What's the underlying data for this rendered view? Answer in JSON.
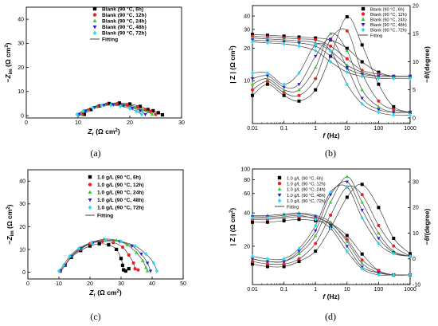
{
  "figure": {
    "captions": [
      "(a)",
      "(b)",
      "(c)",
      "(d)"
    ]
  },
  "colors": {
    "black": "#000000",
    "red": "#e8202a",
    "green": "#35c935",
    "blue": "#2222dd",
    "cyan": "#22ddee",
    "fit": "#444444"
  },
  "chart_data": [
    {
      "type": "scatter",
      "panel": "a",
      "xlabel": "Zr (Ω cm²)",
      "ylabel": "−Zim (Ω cm²)",
      "xlim": [
        0,
        30
      ],
      "ylim": [
        -1,
        45
      ],
      "xticks": [
        0,
        10,
        20,
        30
      ],
      "yticks": [
        0,
        10,
        20,
        30,
        40
      ],
      "legend": "top-left",
      "series": [
        {
          "name": "Blank (90 °C, 6h)",
          "marker": "square",
          "color": "black",
          "x": [
            11.2,
            12.5,
            14.2,
            16.0,
            18.0,
            20.0,
            22.0,
            23.5,
            24.5,
            25.5,
            26.3
          ],
          "y": [
            0.5,
            2.5,
            4.0,
            5.0,
            5.2,
            4.8,
            3.8,
            2.5,
            2.0,
            1.2,
            0.3
          ]
        },
        {
          "name": "Blank (90 °C, 12h)",
          "marker": "circle",
          "color": "red",
          "x": [
            10.8,
            12.0,
            13.8,
            15.5,
            17.5,
            19.5,
            21.5,
            23.0,
            24.0,
            25.0
          ],
          "y": [
            0.5,
            2.3,
            3.8,
            4.7,
            4.9,
            4.5,
            3.5,
            2.4,
            1.8,
            0.5
          ]
        },
        {
          "name": "Blank (90 °C, 24h)",
          "marker": "triangle-up",
          "color": "green",
          "x": [
            10.5,
            11.8,
            13.5,
            15.2,
            17.0,
            19.0,
            21.0,
            22.5,
            23.5,
            24.3
          ],
          "y": [
            0.5,
            2.2,
            3.6,
            4.5,
            4.7,
            4.3,
            3.3,
            2.3,
            1.6,
            0.5
          ]
        },
        {
          "name": "Blank (90 °C, 48h)",
          "marker": "triangle-down",
          "color": "blue",
          "x": [
            10.2,
            11.5,
            13.2,
            15.0,
            16.8,
            18.8,
            20.5,
            22.0,
            23.0
          ],
          "y": [
            0.5,
            2.0,
            3.4,
            4.3,
            4.5,
            4.1,
            3.1,
            2.0,
            0.5
          ]
        },
        {
          "name": "Blank (90 °C, 72h)",
          "marker": "diamond",
          "color": "cyan",
          "x": [
            9.8,
            11.0,
            12.8,
            14.5,
            16.3,
            18.2,
            20.0,
            21.3,
            22.3
          ],
          "y": [
            0.5,
            1.9,
            3.2,
            4.1,
            4.3,
            3.9,
            2.9,
            1.8,
            0.5
          ]
        },
        {
          "name": "Fitting",
          "marker": "line",
          "color": "fit"
        }
      ]
    },
    {
      "type": "line",
      "panel": "b",
      "xlabel": "f (Hz)",
      "ylabel": "| Z | (Ω cm²)",
      "ylabel_right": "−θ/(degree)",
      "xscale": "log",
      "yscale": "log",
      "xlim": [
        0.01,
        1000
      ],
      "ylim": [
        4,
        50
      ],
      "ylim_right": [
        -1,
        20
      ],
      "xticks": [
        "0.01",
        "0.1",
        "1",
        "10",
        "100",
        "1000"
      ],
      "yticks": [
        "10",
        "20",
        "30",
        "40"
      ],
      "yticks_right": [
        "0",
        "5",
        "10",
        "15",
        "20"
      ],
      "legend": "top-right",
      "x": [
        0.01,
        0.03,
        0.1,
        0.3,
        1,
        3,
        10,
        30,
        100,
        300,
        1000
      ],
      "series": [
        {
          "name": "Blank (90 °C, 6h)",
          "marker": "square",
          "color": "black",
          "modulus": [
            27,
            26.5,
            26,
            25.5,
            25,
            24,
            20,
            15,
            12,
            11,
            11
          ],
          "phase": [
            4,
            6,
            4,
            3,
            5,
            11,
            18,
            13,
            6,
            2,
            1
          ]
        },
        {
          "name": "Blank (90 °C, 12h)",
          "marker": "circle",
          "color": "red",
          "modulus": [
            26,
            25.5,
            25,
            24.5,
            24,
            21,
            16,
            12.5,
            11.5,
            11,
            11
          ],
          "phase": [
            5,
            6.5,
            4.5,
            4,
            7,
            14,
            15.5,
            8,
            3,
            1.5,
            1
          ]
        },
        {
          "name": "Blank (90 °C, 24h)",
          "marker": "triangle-up",
          "color": "green",
          "modulus": [
            25,
            24.5,
            24,
            23.5,
            22.5,
            19,
            14,
            12,
            11,
            11,
            11
          ],
          "phase": [
            6,
            7,
            5,
            5,
            9,
            15,
            12,
            5,
            2,
            1,
            1
          ]
        },
        {
          "name": "Blank (90 °C, 48h)",
          "marker": "triangle-down",
          "color": "blue",
          "modulus": [
            24,
            23.5,
            23,
            22.5,
            21,
            17,
            13,
            11.5,
            11,
            11,
            11
          ],
          "phase": [
            7,
            7.5,
            5.5,
            6,
            11,
            14,
            9,
            3.5,
            1.5,
            1,
            1
          ]
        },
        {
          "name": "Blank (90 °C, 72h)",
          "marker": "diamond",
          "color": "cyan",
          "modulus": [
            23,
            22.5,
            22,
            21,
            19,
            15,
            12,
            11,
            10.5,
            10.5,
            10.5
          ],
          "phase": [
            8,
            8,
            6,
            8,
            13,
            12,
            6,
            2.5,
            1,
            0.5,
            0.5
          ]
        },
        {
          "name": "Fitting",
          "marker": "line",
          "color": "fit"
        }
      ]
    },
    {
      "type": "scatter",
      "panel": "c",
      "xlabel": "Zr (Ω cm²)",
      "ylabel": "−Zim (Ω cm²)",
      "xlim": [
        0,
        50
      ],
      "ylim": [
        -3,
        45
      ],
      "xticks": [
        0,
        10,
        20,
        30,
        40,
        50
      ],
      "yticks": [
        0,
        10,
        20,
        30,
        40
      ],
      "legend": "top-right",
      "series": [
        {
          "name": "1.0 g/L (90 °C, 6h)",
          "marker": "square",
          "color": "black",
          "x": [
            10.5,
            12,
            14,
            17,
            20,
            23,
            26,
            28.5,
            30,
            30.5,
            30.8,
            31.5,
            32.5
          ],
          "y": [
            0.5,
            3,
            6.5,
            9.5,
            11.5,
            12.5,
            12,
            10,
            6,
            3,
            1,
            0.5,
            1.5
          ]
        },
        {
          "name": "1.0 g/L (90 °C, 12h)",
          "marker": "circle",
          "color": "red",
          "x": [
            10.5,
            12,
            14,
            17,
            20,
            24,
            27.5,
            30.5,
            32.5,
            34,
            34.5,
            35.5
          ],
          "y": [
            0.5,
            3,
            7,
            10,
            12.5,
            13.5,
            13,
            11,
            7.5,
            4,
            1.5,
            1
          ]
        },
        {
          "name": "1.0 g/L (90 °C, 24h)",
          "marker": "triangle-up",
          "color": "green",
          "x": [
            10.5,
            12,
            14,
            17,
            20.5,
            24.5,
            28.5,
            32,
            35,
            37,
            38,
            38.5
          ],
          "y": [
            0.5,
            3,
            7,
            10.5,
            13,
            14.5,
            14,
            12,
            8.5,
            5,
            2,
            0.5
          ]
        },
        {
          "name": "1.0 g/L (90 °C, 48h)",
          "marker": "triangle-down",
          "color": "blue",
          "x": [
            10.5,
            12,
            14,
            17,
            21,
            25,
            29.5,
            33.5,
            36.5,
            38.5,
            39.5
          ],
          "y": [
            0.5,
            3,
            7,
            10.5,
            13,
            14,
            13.5,
            11.5,
            8,
            4,
            0.5
          ]
        },
        {
          "name": "1.0 g/L (90 °C, 72h)",
          "marker": "diamond",
          "color": "cyan",
          "x": [
            10,
            11.5,
            13.5,
            16.5,
            20.5,
            25,
            30,
            34.5,
            38,
            40.5,
            41.5
          ],
          "y": [
            0.5,
            3,
            7,
            10.5,
            13,
            14,
            13.5,
            11.5,
            8,
            4,
            0.5
          ]
        },
        {
          "name": "Fitting",
          "marker": "line",
          "color": "fit"
        }
      ]
    },
    {
      "type": "line",
      "panel": "d",
      "xlabel": "f (Hz)",
      "ylabel": "| Z | (Ω cm²)",
      "ylabel_right": "−θ/(degree)",
      "xscale": "log",
      "yscale": "log",
      "xlim": [
        0.01,
        1000
      ],
      "ylim": [
        9,
        100
      ],
      "ylim_right": [
        -10,
        35
      ],
      "xticks": [
        "0.01",
        "0.1",
        "1",
        "10",
        "100",
        "1000"
      ],
      "yticks": [
        "20",
        "40",
        "60",
        "80",
        "100"
      ],
      "yticks_right": [
        "-10",
        "0",
        "10",
        "20",
        "30"
      ],
      "legend": "top-left",
      "x": [
        0.01,
        0.03,
        0.1,
        0.3,
        1,
        3,
        10,
        30,
        100,
        300,
        1000
      ],
      "series": [
        {
          "name": "1.0 g/L (90 °C, 6h)",
          "marker": "square",
          "color": "black",
          "modulus": [
            33,
            33,
            34,
            35,
            34,
            32,
            25,
            17,
            12,
            11,
            11
          ],
          "phase": [
            -2,
            -3,
            -3,
            -1,
            3,
            12,
            24,
            29,
            20,
            8,
            2
          ]
        },
        {
          "name": "1.0 g/L (90 °C, 12h)",
          "marker": "circle",
          "color": "red",
          "modulus": [
            35,
            35,
            36,
            37,
            36,
            32,
            23,
            15,
            12,
            11,
            11
          ],
          "phase": [
            -1,
            -2,
            -2,
            0,
            6,
            17,
            28,
            25,
            13,
            5,
            1
          ]
        },
        {
          "name": "1.0 g/L (90 °C, 24h)",
          "marker": "triangle-up",
          "color": "green",
          "modulus": [
            38,
            38,
            39,
            40,
            38,
            33,
            22,
            14,
            11.5,
            11,
            11
          ],
          "phase": [
            0,
            -1,
            -1,
            2,
            9,
            22,
            32,
            22,
            10,
            3,
            1
          ]
        },
        {
          "name": "1.0 g/L (90 °C, 48h)",
          "marker": "triangle-down",
          "color": "blue",
          "modulus": [
            37,
            37,
            38,
            39,
            37,
            31,
            20,
            13,
            11.5,
            11,
            11
          ],
          "phase": [
            0,
            -1,
            -1,
            3,
            11,
            25,
            30,
            19,
            8,
            2.5,
            1
          ]
        },
        {
          "name": "1.0 g/L (90 °C, 72h)",
          "marker": "diamond",
          "color": "cyan",
          "modulus": [
            36,
            36,
            37,
            38,
            35,
            29,
            18,
            12.5,
            11,
            11,
            11
          ],
          "phase": [
            1,
            0,
            0,
            4,
            13,
            26,
            28,
            16,
            6,
            2,
            1
          ]
        },
        {
          "name": "Fitting",
          "marker": "line",
          "color": "fit"
        }
      ]
    }
  ]
}
